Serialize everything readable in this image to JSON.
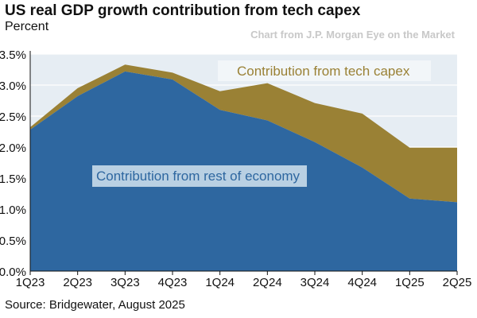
{
  "chart_data": {
    "type": "area",
    "title": "US real GDP growth contribution from tech capex",
    "ylabel": "Percent",
    "credit": "Chart from J.P. Morgan Eye on the Market",
    "source": "Source: Bridgewater, August 2025",
    "categories": [
      "1Q23",
      "2Q23",
      "3Q23",
      "4Q23",
      "1Q24",
      "2Q24",
      "3Q24",
      "4Q24",
      "1Q25",
      "2Q25"
    ],
    "yticks": [
      "0.0%",
      "0.5%",
      "1.0%",
      "1.5%",
      "2.0%",
      "2.5%",
      "3.0%",
      "3.5%"
    ],
    "ylim": [
      0,
      3.5
    ],
    "grid": true,
    "series": [
      {
        "name": "Contribution from rest of economy",
        "color": "#2e67a0",
        "values": [
          2.28,
          2.82,
          3.22,
          3.09,
          2.6,
          2.43,
          2.08,
          1.67,
          1.17,
          1.11
        ]
      },
      {
        "name": "Contribution from tech capex",
        "color": "#9a8135",
        "values": [
          0.04,
          0.13,
          0.11,
          0.11,
          0.3,
          0.6,
          0.63,
          0.87,
          0.82,
          0.88
        ]
      }
    ]
  }
}
